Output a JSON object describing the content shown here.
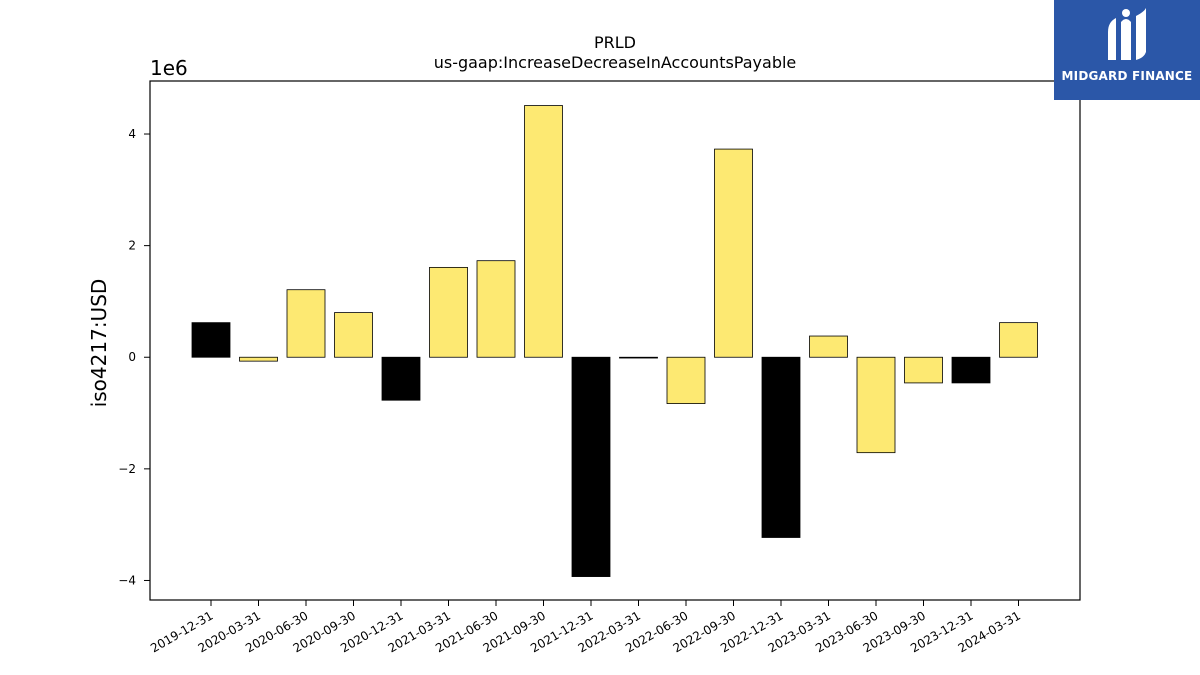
{
  "chart_data": {
    "type": "bar",
    "title": "PRLD",
    "subtitle": "us-gaap:IncreaseDecreaseInAccountsPayable",
    "ylabel": "iso4217:USD",
    "xlabel": "",
    "offset_label": "1e6",
    "scale": 1000000,
    "ylim": [
      -4.35,
      4.95
    ],
    "yticks": [
      -4,
      -2,
      0,
      2,
      4
    ],
    "grid": false,
    "categories": [
      "2019-12-31",
      "2020-03-31",
      "2020-06-30",
      "2020-09-30",
      "2020-12-31",
      "2021-03-31",
      "2021-06-30",
      "2021-09-30",
      "2021-12-31",
      "2022-03-31",
      "2022-06-30",
      "2022-09-30",
      "2022-12-31",
      "2023-03-31",
      "2023-06-30",
      "2023-09-30",
      "2023-12-31",
      "2024-03-31"
    ],
    "values": [
      0.62,
      -0.07,
      1.21,
      0.8,
      -0.77,
      1.61,
      1.73,
      4.51,
      -3.93,
      -0.01,
      -0.83,
      3.73,
      -3.23,
      0.38,
      -1.71,
      -0.46,
      -0.46,
      0.62
    ],
    "bar_colors": [
      "#000000",
      "#fde972",
      "#fde972",
      "#fde972",
      "#000000",
      "#fde972",
      "#fde972",
      "#fde972",
      "#000000",
      "#fde972",
      "#fde972",
      "#fde972",
      "#000000",
      "#fde972",
      "#fde972",
      "#fde972",
      "#000000",
      "#fde972"
    ]
  },
  "logo": {
    "text": "MIDGARD FINANCE",
    "background": "#2b57a8"
  }
}
